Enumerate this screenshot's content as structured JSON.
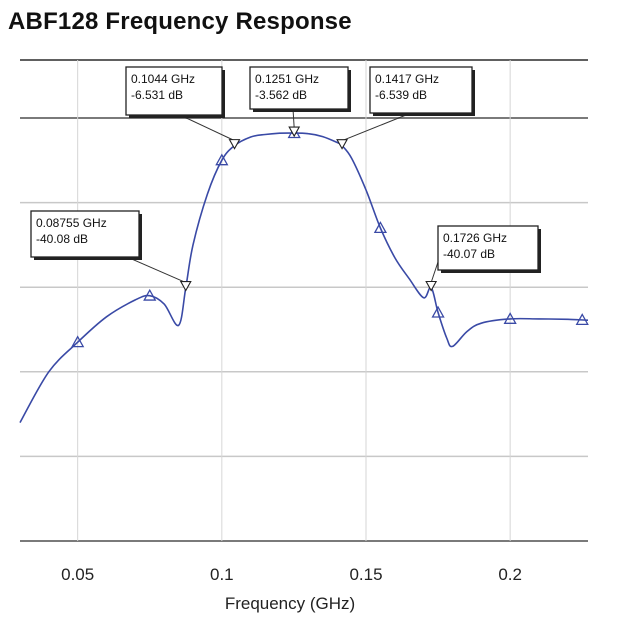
{
  "chart_data": {
    "type": "line",
    "title": "ABF128 Frequency Response",
    "xlabel": "Frequency (GHz)",
    "ylabel": "",
    "xlim": [
      0.03,
      0.227
    ],
    "ylim": [
      -100,
      0
    ],
    "xticks": [
      0.05,
      0.1,
      0.15,
      0.2
    ],
    "xtick_labels": [
      "0.05",
      "0.1",
      "0.15",
      "0.2"
    ],
    "grid": true,
    "line_color": "#3a4aa6",
    "series": [
      {
        "values_x": [
          0.03,
          0.04,
          0.05,
          0.06,
          0.07,
          0.075,
          0.08,
          0.085,
          0.0875,
          0.09,
          0.095,
          0.1,
          0.1044,
          0.11,
          0.115,
          0.12,
          0.1251,
          0.13,
          0.135,
          0.14,
          0.1417,
          0.145,
          0.15,
          0.155,
          0.16,
          0.165,
          0.17,
          0.1726,
          0.175,
          0.178,
          0.18,
          0.185,
          0.19,
          0.2,
          0.21,
          0.22,
          0.227
        ],
        "values_y": [
          -72,
          -60,
          -53,
          -47,
          -43,
          -42,
          -44,
          -49,
          -40.08,
          -30,
          -18,
          -10,
          -6.531,
          -4.5,
          -3.9,
          -3.6,
          -3.562,
          -3.7,
          -4.4,
          -5.8,
          -6.539,
          -9.5,
          -17,
          -26,
          -33,
          -38,
          -42.5,
          -40.07,
          -46,
          -52,
          -54,
          -50.5,
          -48.5,
          -47.5,
          -47.5,
          -47.6,
          -47.8
        ]
      }
    ],
    "triangle_markers_x": [
      0.05,
      0.075,
      0.1,
      0.1251,
      0.155,
      0.175,
      0.2,
      0.225
    ],
    "annotations": [
      {
        "x": 0.0875,
        "y": -40.08,
        "freq": "0.08755 GHz",
        "level": "-40.08 dB"
      },
      {
        "x": 0.1044,
        "y": -6.531,
        "freq": "0.1044 GHz",
        "level": "-6.531 dB"
      },
      {
        "x": 0.1251,
        "y": -3.562,
        "freq": "0.1251 GHz",
        "level": "-3.562 dB"
      },
      {
        "x": 0.1417,
        "y": -6.539,
        "freq": "0.1417 GHz",
        "level": "-6.539 dB"
      },
      {
        "x": 0.1726,
        "y": -40.07,
        "freq": "0.1726 GHz",
        "level": "-40.07 dB"
      }
    ]
  }
}
